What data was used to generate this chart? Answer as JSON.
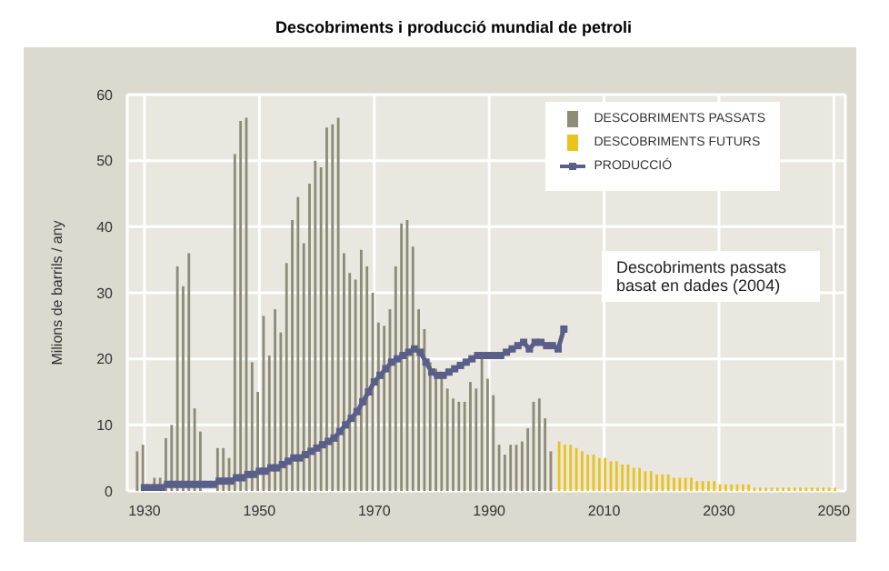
{
  "chart_data": {
    "type": "bar",
    "title": "Descobriments i producció mundial de petroli",
    "ylabel": "Milions de barrils / any",
    "annotations": [
      "Descobriments passats basat en dades (2004)"
    ],
    "xlim": [
      1927,
      2052
    ],
    "xticks": [
      1930,
      1950,
      1970,
      1990,
      2010,
      2030,
      2050
    ],
    "ylim": [
      0,
      60
    ],
    "yticks": [
      0,
      10,
      20,
      30,
      40,
      50,
      60
    ],
    "grid": true,
    "legend": "top right",
    "series": [
      {
        "name": "DESCOBRIMENTS PASSATS",
        "color": "#8e8b76",
        "x": [
          1929,
          1930,
          1931,
          1932,
          1933,
          1934,
          1935,
          1936,
          1937,
          1938,
          1939,
          1940,
          1941,
          1942,
          1943,
          1944,
          1945,
          1946,
          1947,
          1948,
          1949,
          1950,
          1951,
          1952,
          1953,
          1954,
          1955,
          1956,
          1957,
          1958,
          1959,
          1960,
          1961,
          1962,
          1963,
          1964,
          1965,
          1966,
          1967,
          1968,
          1969,
          1970,
          1971,
          1972,
          1973,
          1974,
          1975,
          1976,
          1977,
          1978,
          1979,
          1980,
          1981,
          1982,
          1983,
          1984,
          1985,
          1986,
          1987,
          1988,
          1989,
          1990,
          1991,
          1992,
          1993,
          1994,
          1995,
          1996,
          1997,
          1998,
          1999,
          2000,
          2001
        ],
        "values": [
          6,
          7,
          0,
          2,
          2,
          8,
          10,
          34,
          31,
          36,
          12.5,
          9,
          0,
          0,
          6.5,
          6.5,
          5,
          51,
          56,
          56.5,
          19.5,
          15,
          26.5,
          20.5,
          27.5,
          24,
          34.5,
          41,
          44.5,
          37.5,
          46.5,
          50,
          49,
          55,
          55.5,
          56.5,
          36,
          33,
          32,
          36.5,
          34,
          30,
          25.5,
          25,
          27.5,
          34,
          40.5,
          41,
          37,
          27.5,
          24.5,
          19.5,
          18.5,
          17.5,
          15.5,
          14,
          13.5,
          13.5,
          16.5,
          15.5,
          20,
          17,
          14.5,
          7,
          5.5,
          7,
          7,
          7.5,
          9.5,
          13.5,
          14,
          11,
          6
        ]
      },
      {
        "name": "DESCOBRIMENTS FUTURS",
        "color": "#e8c41c",
        "x": [
          2002,
          2003,
          2004,
          2005,
          2006,
          2007,
          2008,
          2009,
          2010,
          2011,
          2012,
          2013,
          2014,
          2015,
          2016,
          2017,
          2018,
          2019,
          2020,
          2021,
          2022,
          2023,
          2024,
          2025,
          2026,
          2027,
          2028,
          2029,
          2030,
          2031,
          2032,
          2033,
          2034,
          2035,
          2036,
          2037,
          2038,
          2039,
          2040,
          2041,
          2042,
          2043,
          2044,
          2045,
          2046,
          2047,
          2048,
          2049,
          2050
        ],
        "values": [
          7.5,
          7,
          7,
          6.5,
          6,
          5.5,
          5.5,
          5,
          5,
          4.5,
          4.5,
          4,
          4,
          3.5,
          3.5,
          3,
          3,
          2.5,
          2.5,
          2.5,
          2,
          2,
          2,
          2,
          1.5,
          1.5,
          1.5,
          1.5,
          1,
          1,
          1,
          1,
          1,
          1,
          0.5,
          0.5,
          0.5,
          0.5,
          0.5,
          0.5,
          0.5,
          0.5,
          0.5,
          0.5,
          0.5,
          0.5,
          0.5,
          0.5,
          0.5
        ]
      },
      {
        "name": "PRODUCCIÓ",
        "type": "line",
        "color": "#5a5f8a",
        "marker": "square",
        "x": [
          1930,
          1931,
          1932,
          1933,
          1934,
          1935,
          1936,
          1937,
          1938,
          1939,
          1940,
          1941,
          1942,
          1943,
          1944,
          1945,
          1946,
          1947,
          1948,
          1949,
          1950,
          1951,
          1952,
          1953,
          1954,
          1955,
          1956,
          1957,
          1958,
          1959,
          1960,
          1961,
          1962,
          1963,
          1964,
          1965,
          1966,
          1967,
          1968,
          1969,
          1970,
          1971,
          1972,
          1973,
          1974,
          1975,
          1976,
          1977,
          1978,
          1979,
          1980,
          1981,
          1982,
          1983,
          1984,
          1985,
          1986,
          1987,
          1988,
          1989,
          1990,
          1991,
          1992,
          1993,
          1994,
          1995,
          1996,
          1997,
          1998,
          1999,
          2000,
          2001,
          2002,
          2003
        ],
        "values": [
          0.5,
          0.5,
          0.5,
          0.5,
          1,
          1,
          1,
          1,
          1,
          1,
          1,
          1,
          1,
          1.5,
          1.5,
          1.5,
          2,
          2,
          2.5,
          2.5,
          3,
          3,
          3.5,
          3.5,
          4,
          4.5,
          5,
          5,
          5.5,
          6,
          6.5,
          7,
          7.5,
          8,
          9,
          10,
          11,
          12,
          13.5,
          15,
          16.5,
          17.5,
          18.5,
          19.5,
          20,
          20.5,
          21,
          21.5,
          21,
          19.5,
          18,
          17.5,
          17.5,
          18,
          18.5,
          19,
          19.5,
          20,
          20.5,
          20.5,
          20.5,
          20.5,
          20.5,
          21,
          21.5,
          22,
          22.5,
          21.5,
          22.5,
          22.5,
          22,
          22,
          21.5,
          24.5
        ]
      }
    ]
  }
}
